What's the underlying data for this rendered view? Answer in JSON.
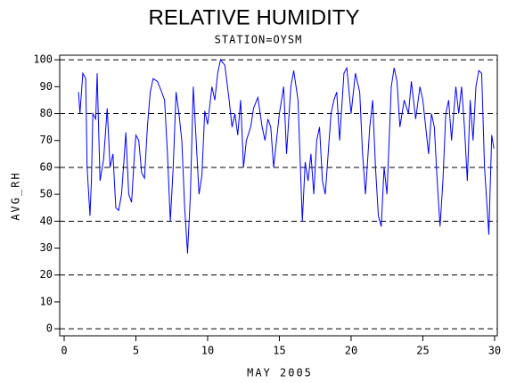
{
  "chart_data": {
    "type": "line",
    "title": "RELATIVE HUMIDITY",
    "subtitle": "STATION=OYSM",
    "xlabel": "MAY 2005",
    "ylabel": "AVG_RH",
    "x": [
      1.0,
      1.1,
      1.3,
      1.5,
      1.6,
      1.8,
      1.9,
      2.0,
      2.2,
      2.3,
      2.5,
      2.75,
      3.0,
      3.2,
      3.4,
      3.6,
      3.8,
      4.0,
      4.2,
      4.3,
      4.5,
      4.7,
      4.9,
      5.0,
      5.2,
      5.4,
      5.6,
      5.8,
      6.0,
      6.2,
      6.5,
      6.8,
      7.0,
      7.2,
      7.4,
      7.6,
      7.8,
      8.0,
      8.2,
      8.4,
      8.6,
      8.8,
      9.0,
      9.2,
      9.4,
      9.6,
      9.8,
      10.0,
      10.3,
      10.5,
      10.7,
      10.9,
      11.2,
      11.5,
      11.7,
      11.9,
      12.1,
      12.3,
      12.5,
      12.7,
      13.0,
      13.2,
      13.5,
      13.8,
      14.0,
      14.2,
      14.4,
      14.6,
      14.8,
      15.0,
      15.3,
      15.5,
      15.8,
      16.0,
      16.3,
      16.5,
      16.6,
      16.8,
      17.0,
      17.2,
      17.4,
      17.6,
      17.8,
      18.0,
      18.2,
      18.4,
      18.6,
      18.8,
      19.0,
      19.2,
      19.5,
      19.7,
      20.0,
      20.3,
      20.6,
      20.8,
      21.0,
      21.3,
      21.5,
      21.7,
      21.9,
      22.1,
      22.3,
      22.5,
      22.8,
      23.0,
      23.2,
      23.4,
      23.7,
      24.0,
      24.2,
      24.5,
      24.8,
      25.0,
      25.2,
      25.4,
      25.6,
      25.8,
      26.0,
      26.2,
      26.4,
      26.6,
      26.8,
      27.0,
      27.3,
      27.5,
      27.7,
      27.9,
      28.1,
      28.3,
      28.5,
      28.7,
      28.9,
      29.1,
      29.3,
      29.6,
      29.8,
      29.95
    ],
    "series": [
      {
        "name": "AVG_RH",
        "color": "#0000ff",
        "values": [
          88,
          80,
          95,
          93,
          60,
          42,
          55,
          80,
          78,
          95,
          55,
          63,
          82,
          60,
          65,
          45,
          44,
          50,
          65,
          73,
          50,
          47,
          65,
          72,
          70,
          58,
          56,
          75,
          88,
          93,
          92,
          88,
          85,
          65,
          40,
          60,
          88,
          80,
          70,
          45,
          28,
          50,
          90,
          70,
          50,
          57,
          81,
          76,
          90,
          85,
          95,
          100,
          98,
          85,
          75,
          80,
          72,
          85,
          60,
          70,
          75,
          82,
          86,
          75,
          70,
          78,
          75,
          60,
          70,
          80,
          90,
          65,
          90,
          96,
          85,
          55,
          40,
          62,
          55,
          65,
          50,
          70,
          75,
          55,
          50,
          65,
          80,
          85,
          88,
          70,
          95,
          97,
          80,
          95,
          88,
          65,
          50,
          75,
          85,
          60,
          42,
          38,
          60,
          50,
          90,
          97,
          92,
          75,
          85,
          80,
          92,
          78,
          90,
          85,
          75,
          65,
          80,
          75,
          55,
          38,
          55,
          80,
          85,
          70,
          90,
          80,
          90,
          75,
          55,
          85,
          70,
          90,
          96,
          95,
          60,
          35,
          72,
          67
        ]
      }
    ],
    "xlim": [
      -0.31,
      30.19
    ],
    "ylim": [
      -2.6,
      101.7
    ],
    "xticks": [
      0,
      5,
      10,
      15,
      20,
      25,
      30
    ],
    "yticks": [
      0,
      10,
      20,
      30,
      40,
      50,
      60,
      70,
      80,
      90,
      100
    ],
    "grid_lines": [
      0,
      20,
      40,
      60,
      80,
      100
    ]
  }
}
